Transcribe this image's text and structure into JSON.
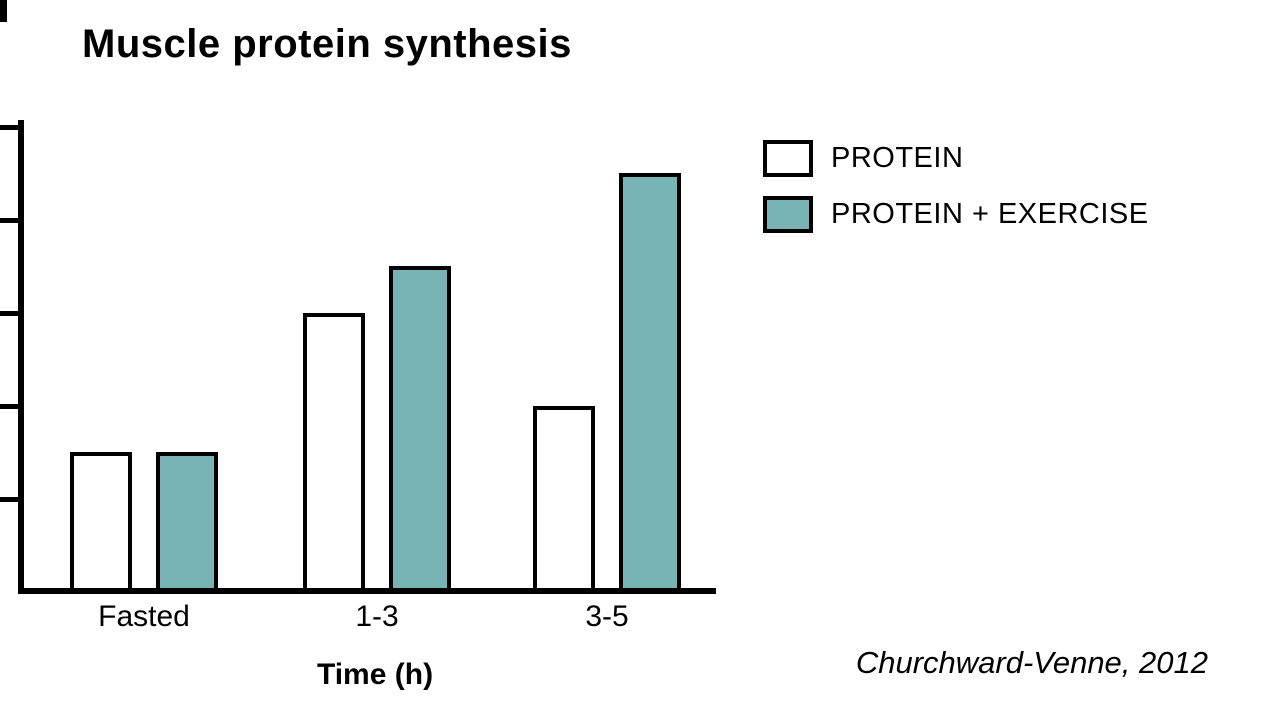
{
  "title": "Muscle protein synthesis",
  "citation": "Churchward-Venne, 2012",
  "colors": {
    "background": "#ffffff",
    "axis": "#000000",
    "protein_bar": "#ffffff",
    "protein_exercise_bar": "#79b4b4"
  },
  "chart_data": {
    "type": "bar",
    "title": "Muscle protein synthesis",
    "categories": [
      "Fasted",
      "1-3",
      "3-5"
    ],
    "series": [
      {
        "name": "PROTEIN",
        "color": "#ffffff",
        "values": [
          1.5,
          3.0,
          2.0
        ]
      },
      {
        "name": "PROTEIN + EXERCISE",
        "color": "#79b4b4",
        "values": [
          1.5,
          3.5,
          4.5
        ]
      }
    ],
    "xlabel": "Time (h)",
    "ylabel": "",
    "ylim": [
      0,
      5
    ],
    "yticks": [
      1,
      2,
      3,
      4,
      5
    ],
    "y_tick_labels_shown": false,
    "grid": false,
    "legend_position": "top-right"
  }
}
